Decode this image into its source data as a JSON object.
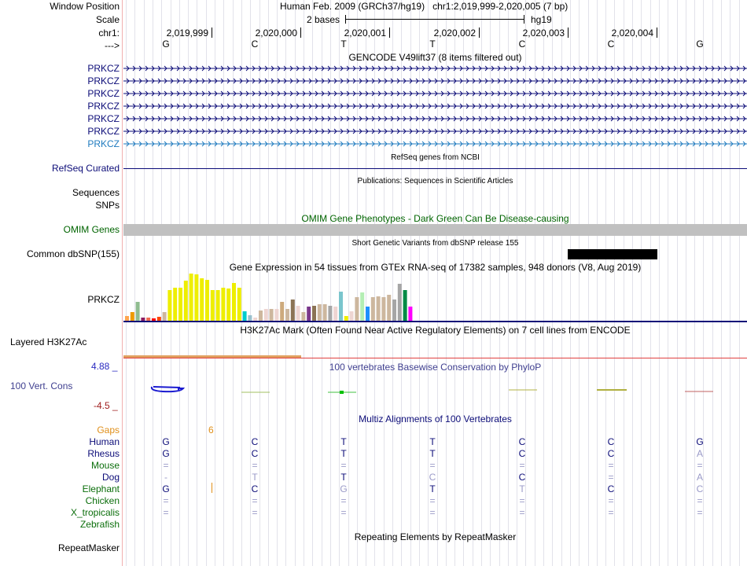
{
  "header": {
    "window_position_label": "Window Position",
    "assembly_text": "Human Feb. 2009 (GRCh37/hg19)",
    "position_text": "chr1:2,019,999-2,020,005 (7 bp)",
    "scale_label": "Scale",
    "scale_bar_text": "2 bases",
    "scale_db": "hg19",
    "chrom_label": "chr1:",
    "strand_label": "--->",
    "ticks": [
      "2,019,999",
      "2,020,000",
      "2,020,001",
      "2,020,002",
      "2,020,003",
      "2,020,004"
    ],
    "bases": [
      "G",
      "C",
      "T",
      "T",
      "C",
      "C",
      "G"
    ]
  },
  "gencode": {
    "title": "GENCODE V49lift37 (8 items filtered out)",
    "items": [
      "PRKCZ",
      "PRKCZ",
      "PRKCZ",
      "PRKCZ",
      "PRKCZ",
      "PRKCZ",
      "PRKCZ"
    ],
    "colors": [
      "#0c0c78",
      "#0c0c78",
      "#0c0c78",
      "#0c0c78",
      "#0c0c78",
      "#0c0c78",
      "#1f7bbf"
    ]
  },
  "refseq": {
    "title": "RefSeq genes from NCBI",
    "label": "RefSeq Curated"
  },
  "publications": {
    "title": "Publications: Sequences in Scientific Articles",
    "label1": "Sequences",
    "label2": "SNPs"
  },
  "omim": {
    "title": "OMIM Gene Phenotypes - Dark Green Can Be Disease-causing",
    "label": "OMIM Genes",
    "color": "#006400"
  },
  "dbsnp": {
    "title": "Short Genetic Variants from dbSNP release 155",
    "label": "Common dbSNP(155)"
  },
  "gtex": {
    "title": "Gene Expression in 54 tissues from GTEx RNA-seq of 17382 samples, 948 donors (V8, Aug 2019)",
    "label": "PRKCZ",
    "bars": [
      {
        "v": 0.1,
        "c": "#ffa54f"
      },
      {
        "v": 0.18,
        "c": "#ee9a00"
      },
      {
        "v": 0.4,
        "c": "#8fbc8f"
      },
      {
        "v": 0.06,
        "c": "#8b1c62"
      },
      {
        "v": 0.07,
        "c": "#ee6a50"
      },
      {
        "v": 0.05,
        "c": "#ff0000"
      },
      {
        "v": 0.08,
        "c": "#ff4500"
      },
      {
        "v": 0.18,
        "c": "#cdb79e"
      },
      {
        "v": 0.65,
        "c": "#eeee00"
      },
      {
        "v": 0.7,
        "c": "#eeee00"
      },
      {
        "v": 0.7,
        "c": "#eeee00"
      },
      {
        "v": 0.85,
        "c": "#eeee00"
      },
      {
        "v": 1.0,
        "c": "#eeee00"
      },
      {
        "v": 0.98,
        "c": "#eeee00"
      },
      {
        "v": 0.9,
        "c": "#eeee00"
      },
      {
        "v": 0.87,
        "c": "#eeee00"
      },
      {
        "v": 0.65,
        "c": "#eeee00"
      },
      {
        "v": 0.65,
        "c": "#eeee00"
      },
      {
        "v": 0.7,
        "c": "#eeee00"
      },
      {
        "v": 0.68,
        "c": "#eeee00"
      },
      {
        "v": 0.8,
        "c": "#eeee00"
      },
      {
        "v": 0.7,
        "c": "#eeee00"
      },
      {
        "v": 0.2,
        "c": "#00cdcd"
      },
      {
        "v": 0.12,
        "c": "#9ac0cd"
      },
      {
        "v": 0.07,
        "c": "#eed5d2"
      },
      {
        "v": 0.22,
        "c": "#cdb79e"
      },
      {
        "v": 0.25,
        "c": "#eed5d2"
      },
      {
        "v": 0.25,
        "c": "#cdb79e"
      },
      {
        "v": 0.25,
        "c": "#eed5d2"
      },
      {
        "v": 0.4,
        "c": "#cdaa7d"
      },
      {
        "v": 0.25,
        "c": "#cdb79e"
      },
      {
        "v": 0.45,
        "c": "#8b7355"
      },
      {
        "v": 0.32,
        "c": "#eed5d2"
      },
      {
        "v": 0.18,
        "c": "#cdb79e"
      },
      {
        "v": 0.3,
        "c": "#7a378b"
      },
      {
        "v": 0.32,
        "c": "#8b7355"
      },
      {
        "v": 0.35,
        "c": "#cdb79e"
      },
      {
        "v": 0.35,
        "c": "#cdb79e"
      },
      {
        "v": 0.32,
        "c": "#a6a6a6"
      },
      {
        "v": 0.3,
        "c": "#eed5d2"
      },
      {
        "v": 0.62,
        "c": "#7ac5cd"
      },
      {
        "v": 0.1,
        "c": "#eeee00"
      },
      {
        "v": 0.2,
        "c": "#eed5d2"
      },
      {
        "v": 0.5,
        "c": "#cdb79e"
      },
      {
        "v": 0.6,
        "c": "#b4eeb4"
      },
      {
        "v": 0.3,
        "c": "#1e90ff"
      },
      {
        "v": 0.5,
        "c": "#cdb79e"
      },
      {
        "v": 0.52,
        "c": "#cdb79e"
      },
      {
        "v": 0.5,
        "c": "#cdb79e"
      },
      {
        "v": 0.55,
        "c": "#cdb79e"
      },
      {
        "v": 0.45,
        "c": "#a6a6a6"
      },
      {
        "v": 0.78,
        "c": "#a6a6a6"
      },
      {
        "v": 0.65,
        "c": "#008b45"
      },
      {
        "v": 0.3,
        "c": "#ff00ff"
      }
    ]
  },
  "h3k27ac": {
    "title": "H3K27Ac Mark (Often Found Near Active Regulatory Elements) on 7 cell lines from ENCODE",
    "label": "Layered H3K27Ac"
  },
  "phylop": {
    "title": "100 vertebrates Basewise Conservation by PhyloP",
    "label": "100 Vert. Cons",
    "ymax": "4.88 _",
    "ymin": "-4.5 _",
    "title_color": "#404090"
  },
  "multiz": {
    "title": "Multiz Alignments of 100 Vertebrates",
    "gaps_label": "Gaps",
    "gap_count": "6",
    "species": [
      {
        "name": "Human",
        "color": "#0c0c78",
        "bases": [
          "G",
          "C",
          "T",
          "T",
          "C",
          "C",
          "G"
        ]
      },
      {
        "name": "Rhesus",
        "color": "#0c0c78",
        "bases": [
          "G",
          "C",
          "T",
          "T",
          "C",
          "C",
          "A"
        ]
      },
      {
        "name": "Mouse",
        "color": "#0b6e0b",
        "bases": [
          "=",
          "=",
          "=",
          "=",
          "=",
          "=",
          "="
        ]
      },
      {
        "name": "Dog",
        "color": "#0c0c78",
        "bases": [
          "-",
          "T",
          "T",
          "C",
          "C",
          "=",
          "A"
        ]
      },
      {
        "name": "Elephant",
        "color": "#0b6e0b",
        "bases": [
          "G",
          "C",
          "G",
          "T",
          "T",
          "C",
          "C"
        ]
      },
      {
        "name": "Chicken",
        "color": "#0b6e0b",
        "bases": [
          "=",
          "=",
          "=",
          "=",
          "=",
          "=",
          "="
        ]
      },
      {
        "name": "X_tropicalis",
        "color": "#0b6e0b",
        "bases": [
          "=",
          "=",
          "=",
          "=",
          "=",
          "=",
          "="
        ]
      },
      {
        "name": "Zebrafish",
        "color": "#0b6e0b",
        "bases": []
      }
    ],
    "faded": [
      [
        0,
        0,
        0,
        0,
        0,
        0,
        0
      ],
      [
        0,
        0,
        0,
        0,
        0,
        0,
        1
      ],
      [
        1,
        1,
        1,
        1,
        1,
        1,
        1
      ],
      [
        1,
        1,
        0,
        1,
        0,
        1,
        1
      ],
      [
        0,
        0,
        1,
        0,
        1,
        0,
        1
      ],
      [
        1,
        1,
        1,
        1,
        1,
        1,
        1
      ],
      [
        1,
        1,
        1,
        1,
        1,
        1,
        1
      ],
      [
        1,
        1,
        1,
        1,
        1,
        1,
        1
      ]
    ]
  },
  "repeatmasker": {
    "title": "Repeating Elements by RepeatMasker",
    "label": "RepeatMasker"
  },
  "colors": {
    "label_blue": "#0c0c78",
    "gaps_orange": "#e0901b",
    "phylop_max_blue": "#2a2ac0",
    "phylop_min_red": "#a02020",
    "faded_base": "#9a9ac8"
  }
}
